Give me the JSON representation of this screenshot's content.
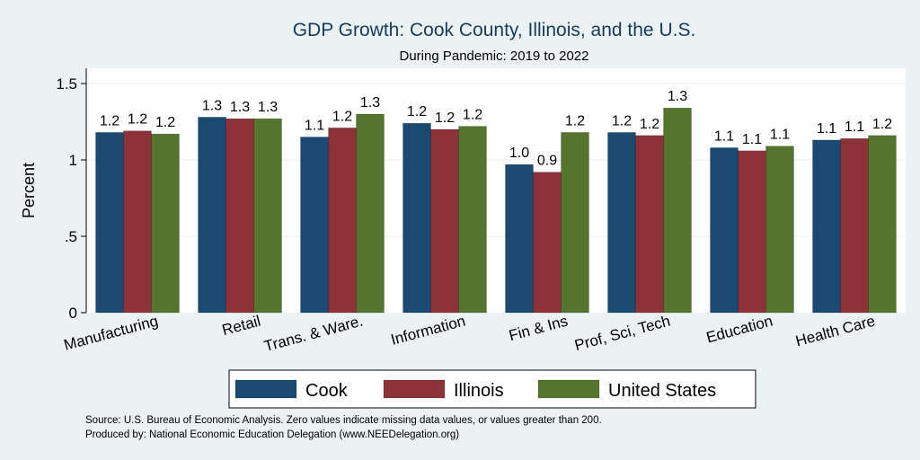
{
  "chart_data": {
    "type": "bar",
    "title": "GDP Growth: Cook County, Illinois, and the U.S.",
    "subtitle": "During Pandemic: 2019 to 2022",
    "ylabel": "Percent",
    "xlabel": "",
    "ylim": [
      0,
      1.6
    ],
    "yticks": [
      {
        "value": 0,
        "label": "0"
      },
      {
        "value": 0.5,
        "label": ".5"
      },
      {
        "value": 1,
        "label": "1"
      },
      {
        "value": 1.5,
        "label": "1.5"
      }
    ],
    "grid": true,
    "legend_position": "bottom",
    "categories": [
      "Manufacturing",
      "Retail",
      "Trans. & Ware.",
      "Information",
      "Fin & Ins",
      "Prof, Sci, Tech",
      "Education",
      "Health Care"
    ],
    "series": [
      {
        "name": "Cook",
        "color": "#1a4a72",
        "values": [
          1.18,
          1.28,
          1.15,
          1.24,
          0.97,
          1.18,
          1.08,
          1.13
        ],
        "labels": [
          "1.2",
          "1.3",
          "1.1",
          "1.2",
          "1.0",
          "1.2",
          "1.1",
          "1.1"
        ]
      },
      {
        "name": "Illinois",
        "color": "#8e3239",
        "values": [
          1.19,
          1.27,
          1.21,
          1.2,
          0.92,
          1.16,
          1.06,
          1.14
        ],
        "labels": [
          "1.2",
          "1.3",
          "1.2",
          "1.2",
          "0.9",
          "1.2",
          "1.1",
          "1.1"
        ]
      },
      {
        "name": "United States",
        "color": "#55752f",
        "values": [
          1.17,
          1.27,
          1.3,
          1.22,
          1.18,
          1.34,
          1.09,
          1.16
        ],
        "labels": [
          "1.2",
          "1.3",
          "1.3",
          "1.2",
          "1.2",
          "1.3",
          "1.1",
          "1.2"
        ]
      }
    ],
    "notes": [
      "Source: U.S. Bureau of Economic Analysis. Zero values indicate missing data values, or values greater than 200.",
      "Produced by: National Economic Education Delegation (www.NEEDelegation.org)"
    ]
  }
}
